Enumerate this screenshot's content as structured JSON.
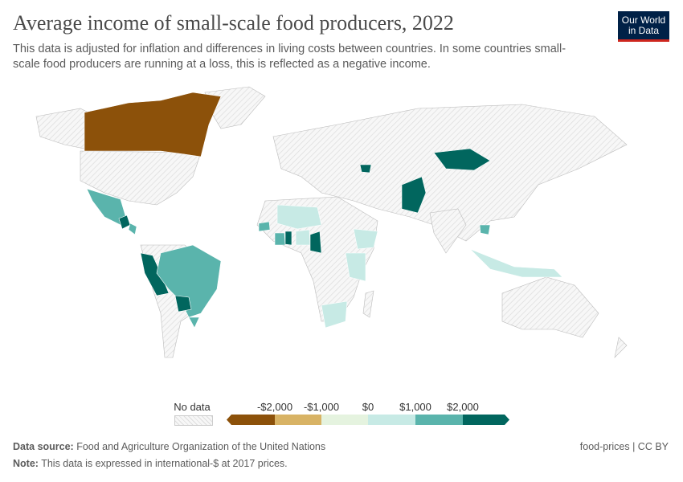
{
  "title": "Average income of small-scale food producers, 2022",
  "subtitle": "This data is adjusted for inflation and differences in living costs between countries. In some countries small-scale food producers are running at a loss, this is reflected as a negative income.",
  "logo": {
    "line1": "Our World",
    "line2": "in Data"
  },
  "legend": {
    "no_data": "No data",
    "ticks": [
      "-$2,000",
      "-$1,000",
      "$0",
      "$1,000",
      "$2,000"
    ],
    "bins": [
      {
        "color": "#8c510a"
      },
      {
        "color": "#d8b365"
      },
      {
        "color": "#e5f3df"
      },
      {
        "color": "#c7eae5"
      },
      {
        "color": "#5ab4ac"
      },
      {
        "color": "#01665e"
      }
    ]
  },
  "map_colors": {
    "dark_brown": "#8c510a",
    "light_brown": "#d8b365",
    "pale": "#e5f3df",
    "light_teal": "#c7eae5",
    "teal": "#5ab4ac",
    "dark_teal": "#01665e",
    "no_data": "#f2f2f2"
  },
  "footer": {
    "source_label": "Data source:",
    "source": "Food and Agriculture Organization of the United Nations",
    "note_label": "Note:",
    "note": "This data is expressed in international-$ at 2017 prices.",
    "license": "food-prices | CC BY"
  }
}
